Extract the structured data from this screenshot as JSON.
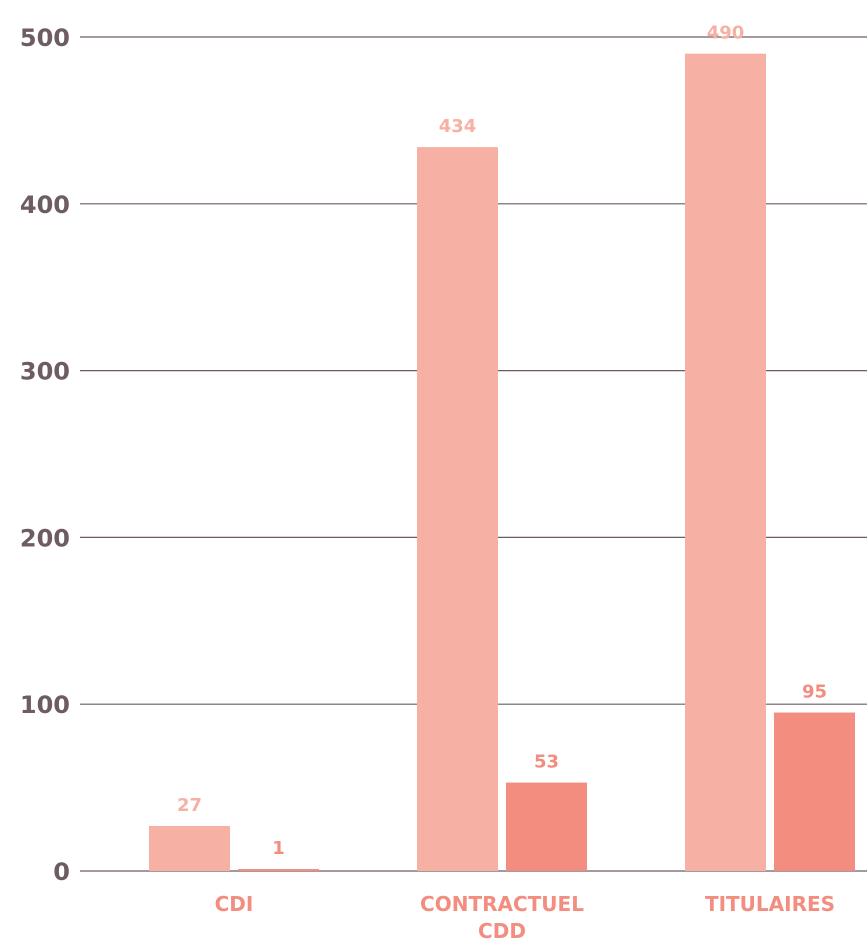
{
  "chart_data": {
    "type": "bar",
    "categories": [
      {
        "lines": [
          "CDI"
        ]
      },
      {
        "lines": [
          "CONTRACTUEL",
          "CDD"
        ]
      },
      {
        "lines": [
          "TITULAIRES"
        ]
      }
    ],
    "series": [
      {
        "values": [
          27,
          434,
          490
        ],
        "color": "#F7B1A4"
      },
      {
        "values": [
          1,
          53,
          95
        ],
        "color": "#F28D80"
      }
    ],
    "ylim": [
      0,
      500
    ],
    "yticks": [
      "0",
      "100",
      "200",
      "300",
      "400",
      "500"
    ],
    "grid": true,
    "colors": {
      "axis_text": "#6D5C63",
      "grid": "#6D5C63",
      "category_text": "#F28D80"
    }
  }
}
